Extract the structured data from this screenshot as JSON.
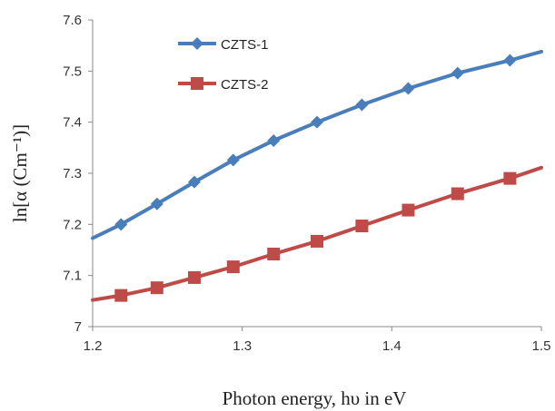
{
  "chart_data": {
    "type": "line",
    "title": "",
    "xlabel": "Photon energy, hυ in eV",
    "ylabel": "ln[α (Cm⁻¹)]",
    "xlim": [
      1.2,
      1.5
    ],
    "ylim": [
      7.0,
      7.6
    ],
    "x_ticks": [
      "1.2",
      "1.3",
      "1.4",
      "1.5"
    ],
    "y_ticks": [
      "7",
      "7.1",
      "7.2",
      "7.3",
      "7.4",
      "7.5",
      "7.6"
    ],
    "grid": false,
    "legend_position": "top-left",
    "series": [
      {
        "name": "CZTS-1",
        "color": "#4a7ebb",
        "marker": "diamond",
        "x": [
          1.219,
          1.243,
          1.268,
          1.294,
          1.321,
          1.35,
          1.38,
          1.411,
          1.444,
          1.479
        ],
        "y": [
          7.2,
          7.24,
          7.283,
          7.326,
          7.364,
          7.4,
          7.434,
          7.466,
          7.496,
          7.521
        ],
        "line_start": {
          "x": 1.2,
          "y": 7.173
        },
        "line_end": {
          "x": 1.5,
          "y": 7.538
        }
      },
      {
        "name": "CZTS-2",
        "color": "#be4b48",
        "marker": "square",
        "x": [
          1.219,
          1.243,
          1.268,
          1.294,
          1.321,
          1.35,
          1.38,
          1.411,
          1.444,
          1.479
        ],
        "y": [
          7.061,
          7.076,
          7.096,
          7.117,
          7.142,
          7.167,
          7.197,
          7.228,
          7.26,
          7.29
        ],
        "line_start": {
          "x": 1.2,
          "y": 7.052
        },
        "line_end": {
          "x": 1.5,
          "y": 7.311
        }
      }
    ]
  }
}
